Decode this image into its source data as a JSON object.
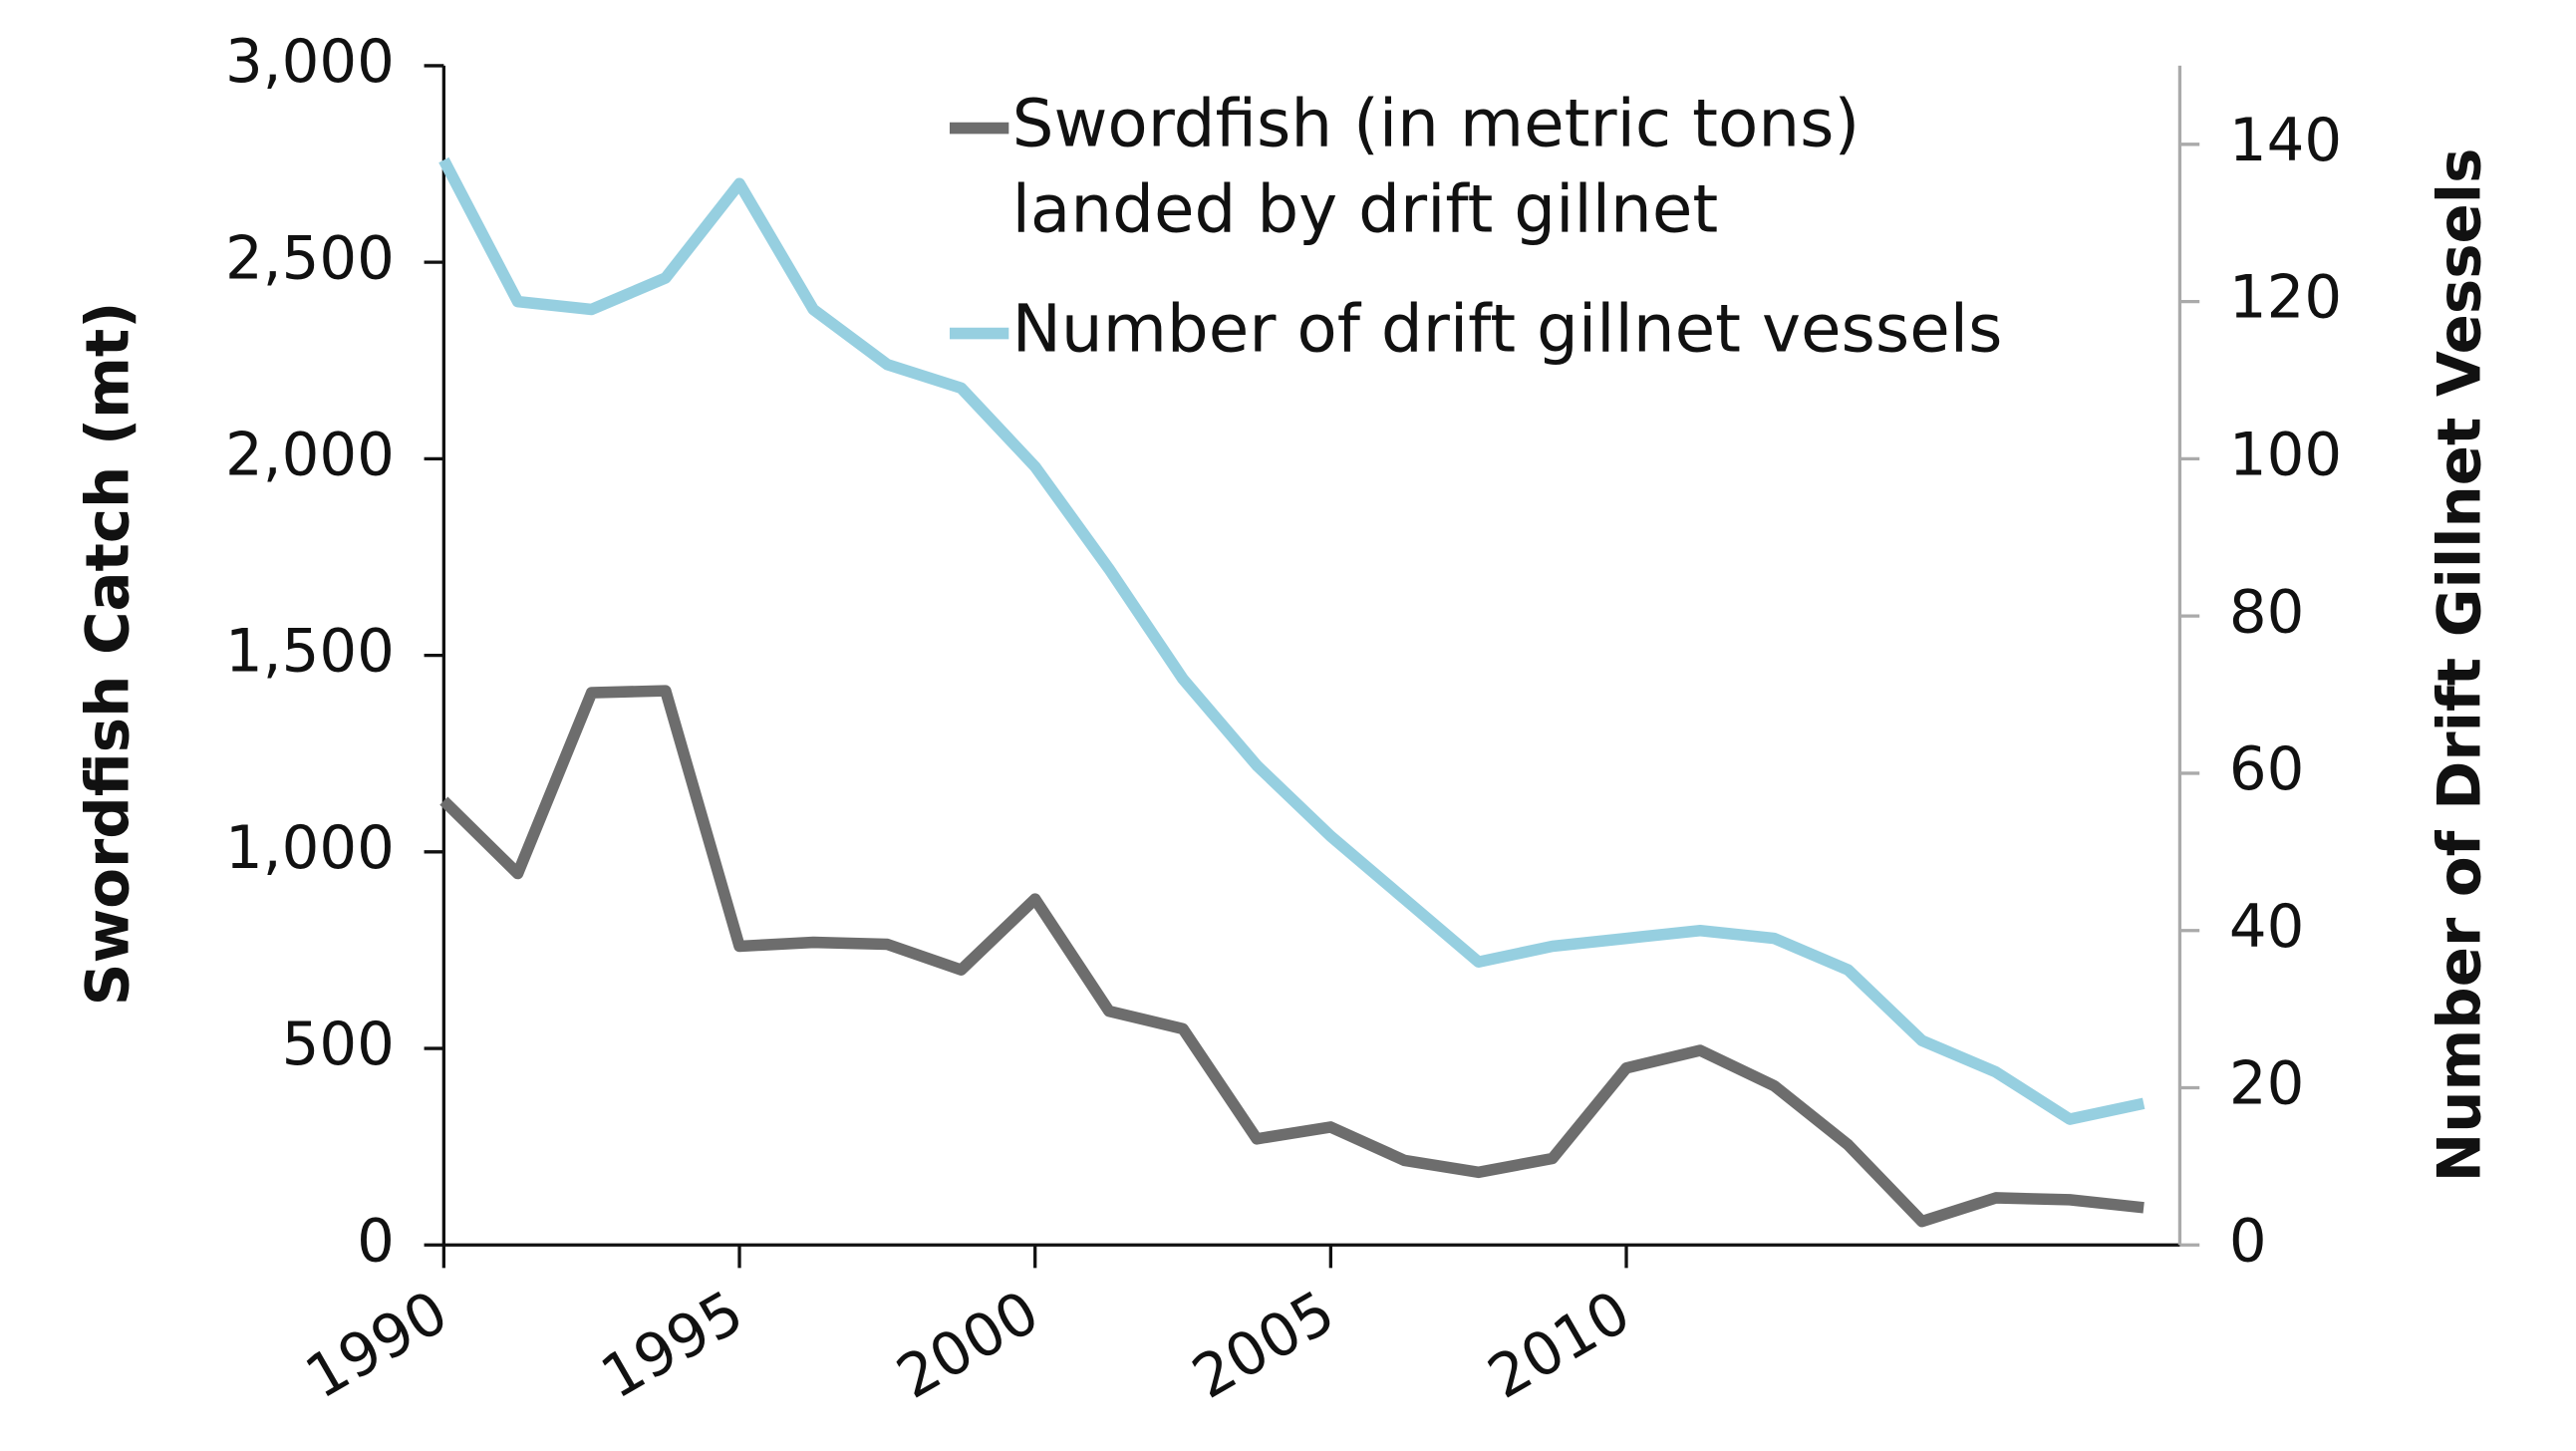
{
  "chart_data": {
    "type": "line",
    "categories": [
      "1990",
      null,
      null,
      null,
      "1995",
      null,
      null,
      null,
      "2000",
      null,
      null,
      null,
      "2005",
      null,
      null,
      null,
      "2010",
      null,
      null,
      null,
      null,
      null,
      null,
      null
    ],
    "series": [
      {
        "name": "Swordfish (in metric tons) landed by drift gillnet",
        "color": "#6d6d6d",
        "values": [
          1130,
          945,
          1405,
          1410,
          760,
          770,
          765,
          700,
          880,
          595,
          550,
          270,
          300,
          215,
          185,
          220,
          450,
          495,
          405,
          255,
          60,
          120,
          115,
          95
        ]
      },
      {
        "name": "Number of drift gillnet vessels",
        "color": "#96cfe0",
        "axis": "y2",
        "values": [
          138,
          120,
          119,
          123,
          135,
          119,
          112,
          109,
          99,
          86,
          72,
          61,
          52,
          44,
          36,
          38,
          39,
          40,
          39,
          35,
          26,
          22,
          16,
          18
        ]
      }
    ],
    "ylabel": "Swordfish Catch  (mt)",
    "y2label": "Number of Drift Gillnet Vessels",
    "ylim": [
      0,
      3000
    ],
    "yticks": [
      0,
      {
        "value": 500,
        "label": "500"
      },
      {
        "value": 1000,
        "label": "1,000"
      },
      {
        "value": 1500,
        "label": "1,500"
      },
      {
        "value": 2000,
        "label": "2,000"
      },
      {
        "value": 2500,
        "label": "2,500"
      },
      {
        "value": 3000,
        "label": "3,000"
      }
    ],
    "y2lim": [
      0,
      150
    ],
    "y2ticks": [
      0,
      20,
      40,
      60,
      80,
      100,
      120,
      140
    ],
    "legend": "top"
  }
}
